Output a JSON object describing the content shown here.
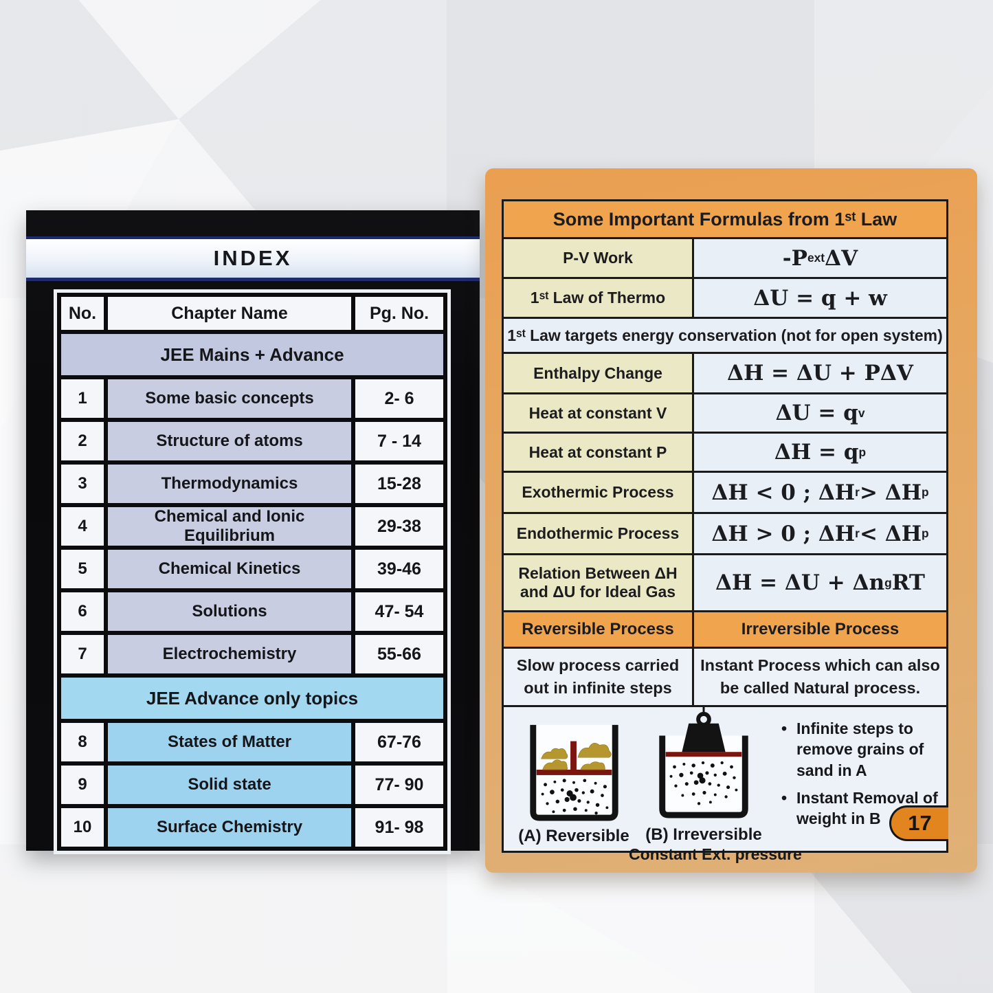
{
  "left_card": {
    "title": "INDEX",
    "headers": [
      "No.",
      "Chapter Name",
      "Pg. No."
    ],
    "sections": [
      {
        "label": "JEE Mains + Advance",
        "rows": [
          {
            "no": "1",
            "name": "Some basic concepts",
            "pages": "2- 6"
          },
          {
            "no": "2",
            "name": "Structure of atoms",
            "pages": "7 - 14"
          },
          {
            "no": "3",
            "name": "Thermodynamics",
            "pages": "15-28"
          },
          {
            "no": "4",
            "name": "Chemical and Ionic Equilibrium",
            "pages": "29-38"
          },
          {
            "no": "5",
            "name": "Chemical Kinetics",
            "pages": "39-46"
          },
          {
            "no": "6",
            "name": "Solutions",
            "pages": "47- 54"
          },
          {
            "no": "7",
            "name": "Electrochemistry",
            "pages": "55-66"
          }
        ]
      },
      {
        "label": "JEE Advance only topics",
        "rows": [
          {
            "no": "8",
            "name": "States of Matter",
            "pages": "67-76"
          },
          {
            "no": "9",
            "name": "Solid state",
            "pages": "77- 90"
          },
          {
            "no": "10",
            "name": "Surface Chemistry",
            "pages": "91- 98"
          }
        ]
      }
    ]
  },
  "right_card": {
    "title": "Some Important Formulas from 1ˢᵗ Law",
    "rows": [
      {
        "label": "P-V Work",
        "formula": [
          {
            "txt": "-P"
          },
          {
            "sub": "ext"
          },
          {
            "txt": " ΔV"
          }
        ]
      },
      {
        "label": "1ˢᵗ Law of Thermo",
        "formula": [
          {
            "txt": "ΔU = q + w"
          }
        ]
      },
      {
        "label": "Enthalpy Change",
        "formula": [
          {
            "txt": "ΔH = ΔU + PΔV"
          }
        ]
      },
      {
        "label": "Heat at constant V",
        "formula": [
          {
            "txt": "ΔU = q"
          },
          {
            "sub": "v"
          }
        ]
      },
      {
        "label": "Heat at constant P",
        "formula": [
          {
            "txt": "ΔH = q"
          },
          {
            "sub": "p"
          }
        ]
      },
      {
        "label": "Exothermic Process",
        "formula": [
          {
            "txt": "ΔH < 0 ; ΔH"
          },
          {
            "sub": "r"
          },
          {
            "txt": " > ΔH"
          },
          {
            "sub": "p"
          }
        ]
      },
      {
        "label": "Endothermic Process",
        "formula": [
          {
            "txt": "ΔH > 0 ; ΔH"
          },
          {
            "sub": "r"
          },
          {
            "txt": " < ΔH"
          },
          {
            "sub": "p"
          }
        ]
      },
      {
        "label": "Relation Between ΔH and ΔU for Ideal Gas",
        "formula": [
          {
            "txt": "ΔH = ΔU + Δn"
          },
          {
            "sub": "g"
          },
          {
            "txt": " RT"
          }
        ]
      }
    ],
    "note": "1ˢᵗ Law targets energy conservation (not for open system)",
    "process_header": {
      "left": "Reversible Process",
      "right": "Irreversible Process"
    },
    "process_desc": {
      "left": "Slow process carried out in infinite steps",
      "right": "Instant Process which can also be called Natural process."
    },
    "illustration": {
      "beaker_a_label": "(A) Reversible",
      "beaker_b_label": "(B) Irreversible",
      "beaker_b_sublabel": "Constant Ext. pressure",
      "bullets": [
        "Infinite steps to remove grains of sand in A",
        "Instant Removal of weight in B"
      ]
    },
    "page_number": "17"
  },
  "colors": {
    "index_card_black": "#0c0c0e",
    "index_navy_line": "#1e2c6e",
    "jee_mains_lavender": "#c1c8e0",
    "jee_advance_cyan": "#a3d8f1",
    "right_card_paper": "#e5a862",
    "table_header_orange": "#f0a44e",
    "label_cell_cream": "#ebe8c5",
    "formula_cell_blue": "#e9eff7",
    "page_badge_orange": "#e2851e",
    "piston_red": "#7b150e",
    "sand_gold": "#b5962f"
  }
}
